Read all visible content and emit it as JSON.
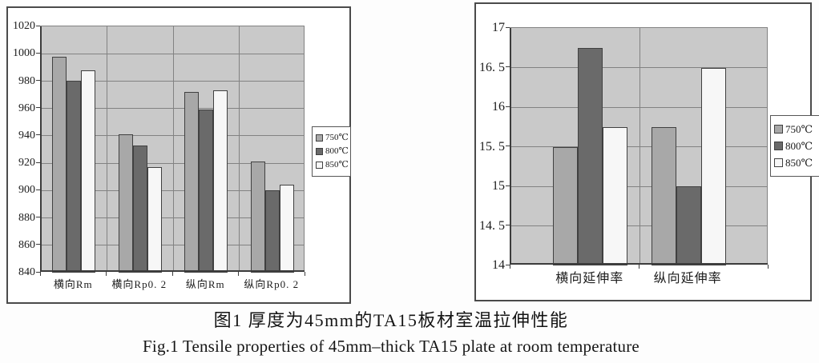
{
  "caption": {
    "chinese": "图1 厚度为45mm的TA15板材室温拉伸性能",
    "english": "Fig.1  Tensile properties of 45mm–thick TA15 plate at room temperature"
  },
  "colors": {
    "page_background": "#fdfdfd",
    "panel_border": "#4a4a4a",
    "plot_background": "#c9c9c9",
    "gridline": "#828282",
    "axis": "#3c3c3c",
    "bar_border": "#404040",
    "text": "#1c1c1c",
    "series": [
      "#a8a8a8",
      "#6a6a6a",
      "#f7f7f7"
    ]
  },
  "chart_data": [
    {
      "type": "bar",
      "title": "",
      "xlabel": "",
      "ylabel": "",
      "categories": [
        "横向Rm",
        "横向Rp0. 2",
        "纵向Rm",
        "纵向Rp0. 2"
      ],
      "series": [
        {
          "name": "750℃",
          "values": [
            998,
            941,
            972,
            921
          ]
        },
        {
          "name": "800℃",
          "values": [
            980,
            933,
            959,
            900
          ]
        },
        {
          "name": "850℃",
          "values": [
            988,
            917,
            973,
            904
          ]
        }
      ],
      "ylim": [
        840,
        1020
      ],
      "ytick_step": 20,
      "ytick_labels": [
        "1020",
        "1000",
        "980",
        "960",
        "940",
        "920",
        "900",
        "880",
        "860",
        "840"
      ],
      "grid": true,
      "legend_position": "right"
    },
    {
      "type": "bar",
      "title": "",
      "xlabel": "",
      "ylabel": "",
      "categories": [
        "横向延伸率",
        "纵向延伸率"
      ],
      "series": [
        {
          "name": "750℃",
          "values": [
            15.5,
            15.75
          ]
        },
        {
          "name": "800℃",
          "values": [
            16.75,
            15
          ]
        },
        {
          "name": "850℃",
          "values": [
            15.75,
            16.5
          ]
        }
      ],
      "ylim": [
        14,
        17
      ],
      "ytick_step": 0.5,
      "ytick_labels": [
        "17",
        "16. 5",
        "16",
        "15. 5",
        "15",
        "14. 5",
        "14"
      ],
      "grid": true,
      "legend_position": "right"
    }
  ]
}
